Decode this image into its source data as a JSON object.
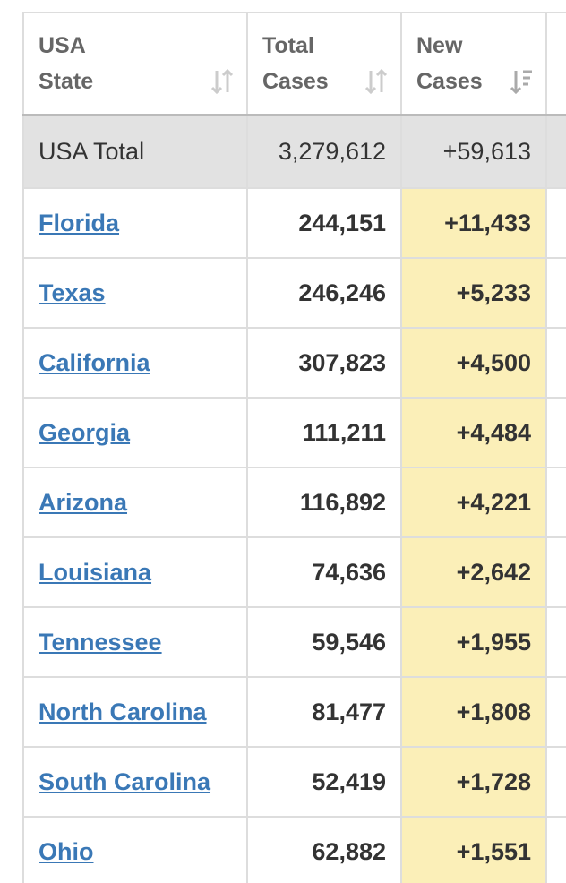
{
  "table": {
    "header": [
      [
        "USA",
        "State"
      ],
      [
        "Total",
        "Cases"
      ],
      [
        "New",
        "Cases"
      ]
    ],
    "total": [
      "USA Total",
      "3,279,612",
      "+59,613"
    ],
    "rows": [
      [
        "Florida",
        "244,151",
        "+11,433"
      ],
      [
        "Texas",
        "246,246",
        "+5,233"
      ],
      [
        "California",
        "307,823",
        "+4,500"
      ],
      [
        "Georgia",
        "111,211",
        "+4,484"
      ],
      [
        "Arizona",
        "116,892",
        "+4,221"
      ],
      [
        "Louisiana",
        "74,636",
        "+2,642"
      ],
      [
        "Tennessee",
        "59,546",
        "+1,955"
      ],
      [
        "North Carolina",
        "81,477",
        "+1,808"
      ],
      [
        "South Carolina",
        "52,419",
        "+1,728"
      ],
      [
        "Ohio",
        "62,882",
        "+1,551"
      ]
    ]
  }
}
